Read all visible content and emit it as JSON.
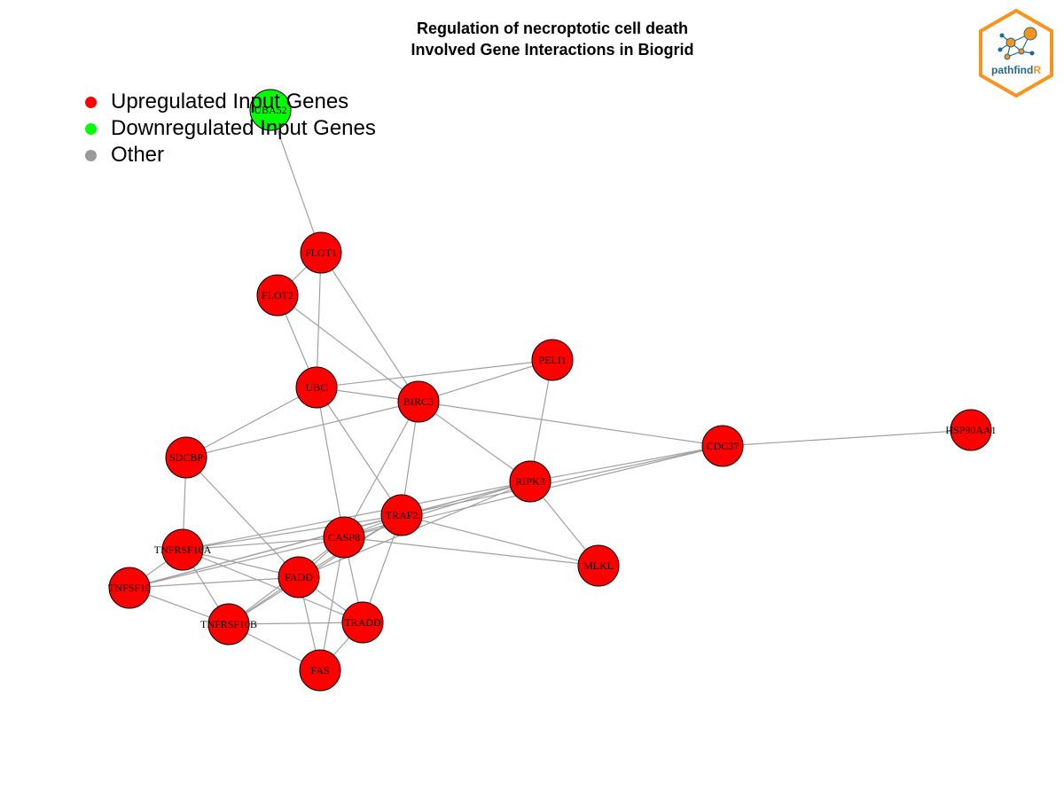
{
  "title": {
    "line1": "Regulation of necroptotic cell death",
    "line2": "Involved Gene Interactions in Biogrid"
  },
  "legend": {
    "items": [
      {
        "label": "Upregulated Input Genes",
        "color": "#ff0000"
      },
      {
        "label": "Downregulated Input Genes",
        "color": "#00ff00"
      },
      {
        "label": "Other",
        "color": "#999999"
      }
    ]
  },
  "logo": {
    "text_main": "pathfind",
    "text_accent": "R",
    "main_color": "#1f6b8e",
    "accent_color": "#f7941d"
  },
  "colors": {
    "node_up": "#ff0000",
    "node_down": "#00ff00",
    "edge": "#a0a0a0"
  },
  "network": {
    "nodes": [
      {
        "id": "UBA52",
        "status": "down"
      },
      {
        "id": "FLOT1",
        "status": "up"
      },
      {
        "id": "FLOT2",
        "status": "up"
      },
      {
        "id": "PELI1",
        "status": "up"
      },
      {
        "id": "UBC",
        "status": "up"
      },
      {
        "id": "BIRC3",
        "status": "up"
      },
      {
        "id": "CDC37",
        "status": "up"
      },
      {
        "id": "HSP90AA1",
        "status": "up"
      },
      {
        "id": "SDCBP",
        "status": "up"
      },
      {
        "id": "RIPK3",
        "status": "up"
      },
      {
        "id": "TRAF2",
        "status": "up"
      },
      {
        "id": "CASP8",
        "status": "up"
      },
      {
        "id": "TNFRSF10A",
        "status": "up"
      },
      {
        "id": "MLKL",
        "status": "up"
      },
      {
        "id": "FADD",
        "status": "up"
      },
      {
        "id": "TNFSF10",
        "status": "up"
      },
      {
        "id": "TRADD",
        "status": "up"
      },
      {
        "id": "TNFRSF10B",
        "status": "up"
      },
      {
        "id": "FAS",
        "status": "up"
      }
    ],
    "edges": [
      [
        "UBA52",
        "FLOT1"
      ],
      [
        "FLOT1",
        "FLOT2"
      ],
      [
        "FLOT1",
        "UBC"
      ],
      [
        "FLOT1",
        "BIRC3"
      ],
      [
        "FLOT2",
        "UBC"
      ],
      [
        "FLOT2",
        "BIRC3"
      ],
      [
        "UBC",
        "PELI1"
      ],
      [
        "UBC",
        "BIRC3"
      ],
      [
        "UBC",
        "SDCBP"
      ],
      [
        "UBC",
        "CASP8"
      ],
      [
        "UBC",
        "TRAF2"
      ],
      [
        "PELI1",
        "BIRC3"
      ],
      [
        "PELI1",
        "RIPK3"
      ],
      [
        "BIRC3",
        "CDC37"
      ],
      [
        "BIRC3",
        "RIPK3"
      ],
      [
        "BIRC3",
        "SDCBP"
      ],
      [
        "BIRC3",
        "TRAF2"
      ],
      [
        "BIRC3",
        "CASP8"
      ],
      [
        "CDC37",
        "HSP90AA1"
      ],
      [
        "CDC37",
        "RIPK3"
      ],
      [
        "CDC37",
        "CASP8"
      ],
      [
        "CDC37",
        "TRAF2"
      ],
      [
        "SDCBP",
        "TNFRSF10A"
      ],
      [
        "SDCBP",
        "FADD"
      ],
      [
        "RIPK3",
        "MLKL"
      ],
      [
        "RIPK3",
        "CASP8"
      ],
      [
        "RIPK3",
        "TRAF2"
      ],
      [
        "RIPK3",
        "FADD"
      ],
      [
        "RIPK3",
        "TNFRSF10A"
      ],
      [
        "RIPK3",
        "TNFSF10"
      ],
      [
        "TRAF2",
        "MLKL"
      ],
      [
        "TRAF2",
        "CASP8"
      ],
      [
        "TRAF2",
        "TRADD"
      ],
      [
        "TRAF2",
        "FADD"
      ],
      [
        "TRAF2",
        "TNFRSF10B"
      ],
      [
        "TRAF2",
        "TNFRSF10A"
      ],
      [
        "TRAF2",
        "TNFSF10"
      ],
      [
        "CASP8",
        "MLKL"
      ],
      [
        "CASP8",
        "FADD"
      ],
      [
        "CASP8",
        "TRADD"
      ],
      [
        "CASP8",
        "FAS"
      ],
      [
        "CASP8",
        "TNFRSF10A"
      ],
      [
        "CASP8",
        "TNFSF10"
      ],
      [
        "CASP8",
        "TNFRSF10B"
      ],
      [
        "TNFRSF10A",
        "TNFSF10"
      ],
      [
        "TNFRSF10A",
        "FADD"
      ],
      [
        "TNFRSF10A",
        "TNFRSF10B"
      ],
      [
        "TNFRSF10A",
        "TRADD"
      ],
      [
        "TNFSF10",
        "FADD"
      ],
      [
        "TNFSF10",
        "TNFRSF10B"
      ],
      [
        "FADD",
        "TRADD"
      ],
      [
        "FADD",
        "FAS"
      ],
      [
        "FADD",
        "TNFRSF10B"
      ],
      [
        "TNFRSF10B",
        "TRADD"
      ],
      [
        "TNFRSF10B",
        "FAS"
      ],
      [
        "TRADD",
        "FAS"
      ]
    ]
  }
}
